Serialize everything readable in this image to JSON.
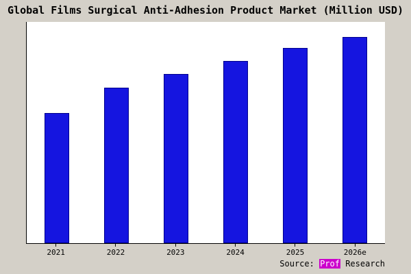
{
  "title": "Global Films Surgical Anti-Adhesion Product Market (Million USD)",
  "source": {
    "prefix": "Source: ",
    "highlight": "Prof",
    "suffix": " Research"
  },
  "colors": {
    "background": "#d4d0c8",
    "plot_background": "#ffffff",
    "bar_fill": "#1515e0",
    "bar_border": "#00008b",
    "axis": "#000000",
    "source_highlight_bg": "#cc00cc"
  },
  "chart_data": {
    "type": "bar",
    "title": "Global Films Surgical Anti-Adhesion Product Market (Million USD)",
    "categories": [
      "2021",
      "2022",
      "2023",
      "2024",
      "2025",
      "2026e"
    ],
    "values": [
      470,
      563,
      613,
      658,
      705,
      745
    ],
    "xlabel": "",
    "ylabel": "",
    "ylim": [
      0,
      800
    ],
    "grid": false,
    "legend": false,
    "y_axis_ticks_visible": false
  }
}
